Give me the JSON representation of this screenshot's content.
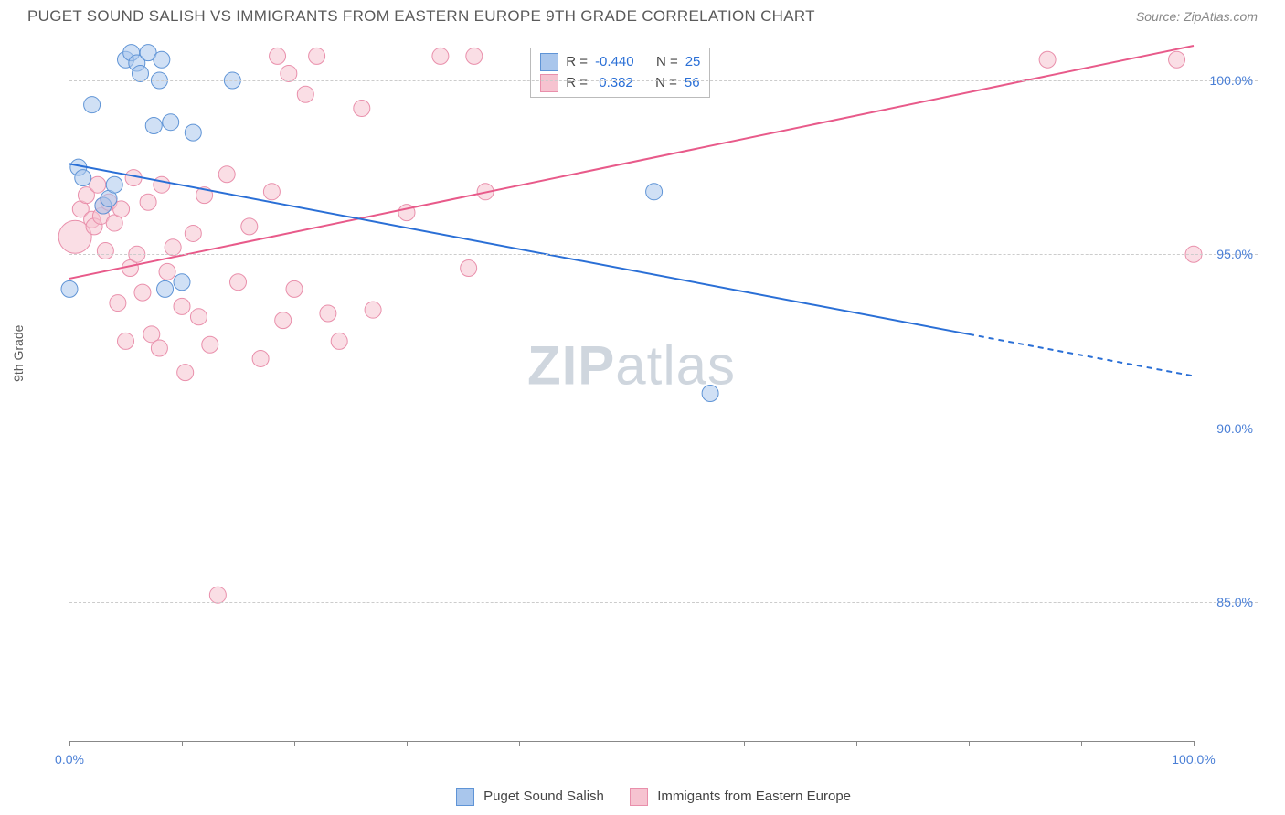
{
  "header": {
    "title": "PUGET SOUND SALISH VS IMMIGRANTS FROM EASTERN EUROPE 9TH GRADE CORRELATION CHART",
    "source": "Source: ZipAtlas.com"
  },
  "watermark_parts": {
    "a": "ZIP",
    "b": "atlas"
  },
  "y_axis_label": "9th Grade",
  "series": {
    "blue": {
      "name": "Puget Sound Salish",
      "color_fill": "#a9c6ec",
      "color_stroke": "#5f94d6",
      "line_color": "#2a6fd6",
      "r_value": "-0.440",
      "n_value": "25",
      "regression": {
        "x1": 0,
        "y1": 97.6,
        "x2_solid": 80,
        "y2_solid": 92.7,
        "x2": 100,
        "y2": 91.5
      },
      "points": [
        {
          "x": 0.0,
          "y": 94.0,
          "r": 9
        },
        {
          "x": 0.8,
          "y": 97.5,
          "r": 9
        },
        {
          "x": 1.2,
          "y": 97.2,
          "r": 9
        },
        {
          "x": 2.0,
          "y": 99.3,
          "r": 9
        },
        {
          "x": 3.0,
          "y": 96.4,
          "r": 9
        },
        {
          "x": 3.5,
          "y": 96.6,
          "r": 9
        },
        {
          "x": 4.0,
          "y": 97.0,
          "r": 9
        },
        {
          "x": 5.0,
          "y": 100.6,
          "r": 9
        },
        {
          "x": 5.5,
          "y": 100.8,
          "r": 9
        },
        {
          "x": 6.0,
          "y": 100.5,
          "r": 9
        },
        {
          "x": 6.3,
          "y": 100.2,
          "r": 9
        },
        {
          "x": 7.0,
          "y": 100.8,
          "r": 9
        },
        {
          "x": 7.5,
          "y": 98.7,
          "r": 9
        },
        {
          "x": 8.0,
          "y": 100.0,
          "r": 9
        },
        {
          "x": 8.2,
          "y": 100.6,
          "r": 9
        },
        {
          "x": 8.5,
          "y": 94.0,
          "r": 9
        },
        {
          "x": 9.0,
          "y": 98.8,
          "r": 9
        },
        {
          "x": 10.0,
          "y": 94.2,
          "r": 9
        },
        {
          "x": 11.0,
          "y": 98.5,
          "r": 9
        },
        {
          "x": 14.5,
          "y": 100.0,
          "r": 9
        },
        {
          "x": 52.0,
          "y": 96.8,
          "r": 9
        },
        {
          "x": 57.0,
          "y": 91.0,
          "r": 9
        }
      ]
    },
    "pink": {
      "name": "Immigants from Eastern Europe",
      "color_fill": "#f6c3d0",
      "color_stroke": "#e98fab",
      "line_color": "#e85a8a",
      "r_value": "0.382",
      "n_value": "56",
      "regression": {
        "x1": 0,
        "y1": 94.3,
        "x2_solid": 100,
        "y2_solid": 101.0,
        "x2": 100,
        "y2": 101.0
      },
      "points": [
        {
          "x": 0.5,
          "y": 95.5,
          "r": 18
        },
        {
          "x": 1.0,
          "y": 96.3,
          "r": 9
        },
        {
          "x": 1.5,
          "y": 96.7,
          "r": 9
        },
        {
          "x": 2.0,
          "y": 96.0,
          "r": 9
        },
        {
          "x": 2.2,
          "y": 95.8,
          "r": 9
        },
        {
          "x": 2.5,
          "y": 97.0,
          "r": 9
        },
        {
          "x": 2.8,
          "y": 96.1,
          "r": 9
        },
        {
          "x": 3.0,
          "y": 96.4,
          "r": 9
        },
        {
          "x": 3.2,
          "y": 95.1,
          "r": 9
        },
        {
          "x": 3.5,
          "y": 96.5,
          "r": 9
        },
        {
          "x": 4.0,
          "y": 95.9,
          "r": 9
        },
        {
          "x": 4.3,
          "y": 93.6,
          "r": 9
        },
        {
          "x": 4.6,
          "y": 96.3,
          "r": 9
        },
        {
          "x": 5.0,
          "y": 92.5,
          "r": 9
        },
        {
          "x": 5.4,
          "y": 94.6,
          "r": 9
        },
        {
          "x": 5.7,
          "y": 97.2,
          "r": 9
        },
        {
          "x": 6.0,
          "y": 95.0,
          "r": 9
        },
        {
          "x": 6.5,
          "y": 93.9,
          "r": 9
        },
        {
          "x": 7.0,
          "y": 96.5,
          "r": 9
        },
        {
          "x": 7.3,
          "y": 92.7,
          "r": 9
        },
        {
          "x": 8.0,
          "y": 92.3,
          "r": 9
        },
        {
          "x": 8.2,
          "y": 97.0,
          "r": 9
        },
        {
          "x": 8.7,
          "y": 94.5,
          "r": 9
        },
        {
          "x": 9.2,
          "y": 95.2,
          "r": 9
        },
        {
          "x": 10.0,
          "y": 93.5,
          "r": 9
        },
        {
          "x": 10.3,
          "y": 91.6,
          "r": 9
        },
        {
          "x": 11.0,
          "y": 95.6,
          "r": 9
        },
        {
          "x": 11.5,
          "y": 93.2,
          "r": 9
        },
        {
          "x": 12.0,
          "y": 96.7,
          "r": 9
        },
        {
          "x": 12.5,
          "y": 92.4,
          "r": 9
        },
        {
          "x": 13.2,
          "y": 85.2,
          "r": 9
        },
        {
          "x": 14.0,
          "y": 97.3,
          "r": 9
        },
        {
          "x": 15.0,
          "y": 94.2,
          "r": 9
        },
        {
          "x": 16.0,
          "y": 95.8,
          "r": 9
        },
        {
          "x": 17.0,
          "y": 92.0,
          "r": 9
        },
        {
          "x": 18.0,
          "y": 96.8,
          "r": 9
        },
        {
          "x": 18.5,
          "y": 100.7,
          "r": 9
        },
        {
          "x": 19.0,
          "y": 93.1,
          "r": 9
        },
        {
          "x": 19.5,
          "y": 100.2,
          "r": 9
        },
        {
          "x": 20.0,
          "y": 94.0,
          "r": 9
        },
        {
          "x": 21.0,
          "y": 99.6,
          "r": 9
        },
        {
          "x": 22.0,
          "y": 100.7,
          "r": 9
        },
        {
          "x": 23.0,
          "y": 93.3,
          "r": 9
        },
        {
          "x": 24.0,
          "y": 92.5,
          "r": 9
        },
        {
          "x": 26.0,
          "y": 99.2,
          "r": 9
        },
        {
          "x": 27.0,
          "y": 93.4,
          "r": 9
        },
        {
          "x": 30.0,
          "y": 96.2,
          "r": 9
        },
        {
          "x": 33.0,
          "y": 100.7,
          "r": 9
        },
        {
          "x": 35.5,
          "y": 94.6,
          "r": 9
        },
        {
          "x": 36.0,
          "y": 100.7,
          "r": 9
        },
        {
          "x": 37.0,
          "y": 96.8,
          "r": 9
        },
        {
          "x": 87.0,
          "y": 100.6,
          "r": 9
        },
        {
          "x": 98.5,
          "y": 100.6,
          "r": 9
        },
        {
          "x": 100.0,
          "y": 95.0,
          "r": 9
        }
      ]
    }
  },
  "axes": {
    "xlim": [
      0,
      100
    ],
    "ylim": [
      81,
      101
    ],
    "yticks": [
      {
        "v": 85.0,
        "label": "85.0%"
      },
      {
        "v": 90.0,
        "label": "90.0%"
      },
      {
        "v": 95.0,
        "label": "95.0%"
      },
      {
        "v": 100.0,
        "label": "100.0%"
      }
    ],
    "xticks_minor": [
      0,
      10,
      20,
      30,
      40,
      50,
      60,
      70,
      80,
      90,
      100
    ],
    "xticks_labels": [
      {
        "v": 0,
        "label": "0.0%"
      },
      {
        "v": 100,
        "label": "100.0%"
      }
    ]
  },
  "legend_labels": {
    "r_prefix": "R =",
    "n_prefix": "N ="
  },
  "legend_bottom": {
    "label1": "Puget Sound Salish",
    "label2": "Immigants from Eastern Europe"
  }
}
